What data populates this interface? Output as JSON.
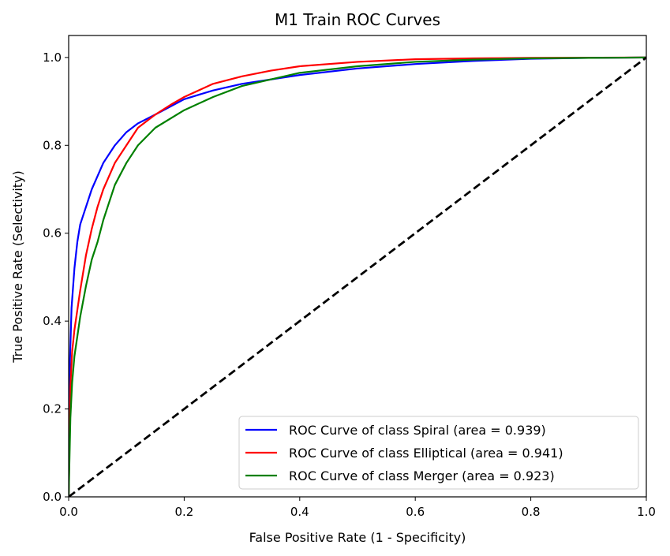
{
  "chart_data": {
    "type": "line",
    "title": "M1 Train ROC Curves",
    "xlabel": "False Positive Rate (1 - Specificity)",
    "ylabel": "True Positive Rate (Selectivity)",
    "xlim": [
      0.0,
      1.0
    ],
    "ylim": [
      0.0,
      1.05
    ],
    "xticks": [
      0.0,
      0.2,
      0.4,
      0.6,
      0.8,
      1.0
    ],
    "xtick_labels": [
      "0.0",
      "0.2",
      "0.4",
      "0.6",
      "0.8",
      "1.0"
    ],
    "yticks": [
      0.0,
      0.2,
      0.4,
      0.6,
      0.8,
      1.0
    ],
    "ytick_labels": [
      "0.0",
      "0.2",
      "0.4",
      "0.6",
      "0.8",
      "1.0"
    ],
    "grid": false,
    "legend_position": "lower-right",
    "series": [
      {
        "name": "ROC Curve of class Spiral (area = 0.939)",
        "color": "#0000ff",
        "style": "solid",
        "points": [
          [
            0,
            0
          ],
          [
            0.002,
            0.3
          ],
          [
            0.005,
            0.43
          ],
          [
            0.01,
            0.52
          ],
          [
            0.015,
            0.58
          ],
          [
            0.02,
            0.62
          ],
          [
            0.03,
            0.66
          ],
          [
            0.04,
            0.7
          ],
          [
            0.05,
            0.73
          ],
          [
            0.06,
            0.76
          ],
          [
            0.08,
            0.8
          ],
          [
            0.1,
            0.83
          ],
          [
            0.12,
            0.85
          ],
          [
            0.15,
            0.87
          ],
          [
            0.2,
            0.905
          ],
          [
            0.25,
            0.925
          ],
          [
            0.3,
            0.94
          ],
          [
            0.4,
            0.96
          ],
          [
            0.5,
            0.975
          ],
          [
            0.6,
            0.985
          ],
          [
            0.7,
            0.992
          ],
          [
            0.8,
            0.997
          ],
          [
            0.9,
            0.999
          ],
          [
            1.0,
            1.0
          ]
        ]
      },
      {
        "name": "ROC Curve of class Elliptical (area = 0.941)",
        "color": "#ff0000",
        "style": "solid",
        "points": [
          [
            0,
            0
          ],
          [
            0.003,
            0.25
          ],
          [
            0.006,
            0.33
          ],
          [
            0.01,
            0.38
          ],
          [
            0.02,
            0.47
          ],
          [
            0.03,
            0.55
          ],
          [
            0.04,
            0.61
          ],
          [
            0.05,
            0.66
          ],
          [
            0.06,
            0.7
          ],
          [
            0.08,
            0.76
          ],
          [
            0.1,
            0.8
          ],
          [
            0.12,
            0.84
          ],
          [
            0.15,
            0.87
          ],
          [
            0.18,
            0.895
          ],
          [
            0.2,
            0.91
          ],
          [
            0.25,
            0.94
          ],
          [
            0.3,
            0.957
          ],
          [
            0.35,
            0.97
          ],
          [
            0.4,
            0.98
          ],
          [
            0.5,
            0.99
          ],
          [
            0.6,
            0.996
          ],
          [
            0.7,
            0.998
          ],
          [
            0.8,
            0.999
          ],
          [
            1.0,
            1.0
          ]
        ]
      },
      {
        "name": "ROC Curve of class Merger (area = 0.923)",
        "color": "#008000",
        "style": "solid",
        "points": [
          [
            0,
            0
          ],
          [
            0.003,
            0.18
          ],
          [
            0.006,
            0.26
          ],
          [
            0.01,
            0.32
          ],
          [
            0.02,
            0.41
          ],
          [
            0.03,
            0.48
          ],
          [
            0.04,
            0.54
          ],
          [
            0.05,
            0.58
          ],
          [
            0.06,
            0.63
          ],
          [
            0.07,
            0.67
          ],
          [
            0.08,
            0.71
          ],
          [
            0.1,
            0.76
          ],
          [
            0.12,
            0.8
          ],
          [
            0.15,
            0.84
          ],
          [
            0.2,
            0.88
          ],
          [
            0.25,
            0.91
          ],
          [
            0.3,
            0.935
          ],
          [
            0.35,
            0.95
          ],
          [
            0.4,
            0.965
          ],
          [
            0.5,
            0.98
          ],
          [
            0.6,
            0.99
          ],
          [
            0.7,
            0.995
          ],
          [
            0.8,
            0.998
          ],
          [
            0.9,
            0.999
          ],
          [
            1.0,
            1.0
          ]
        ]
      }
    ],
    "reference_line": {
      "color": "#000000",
      "style": "dashed",
      "points": [
        [
          0,
          0
        ],
        [
          1,
          1
        ]
      ]
    }
  }
}
